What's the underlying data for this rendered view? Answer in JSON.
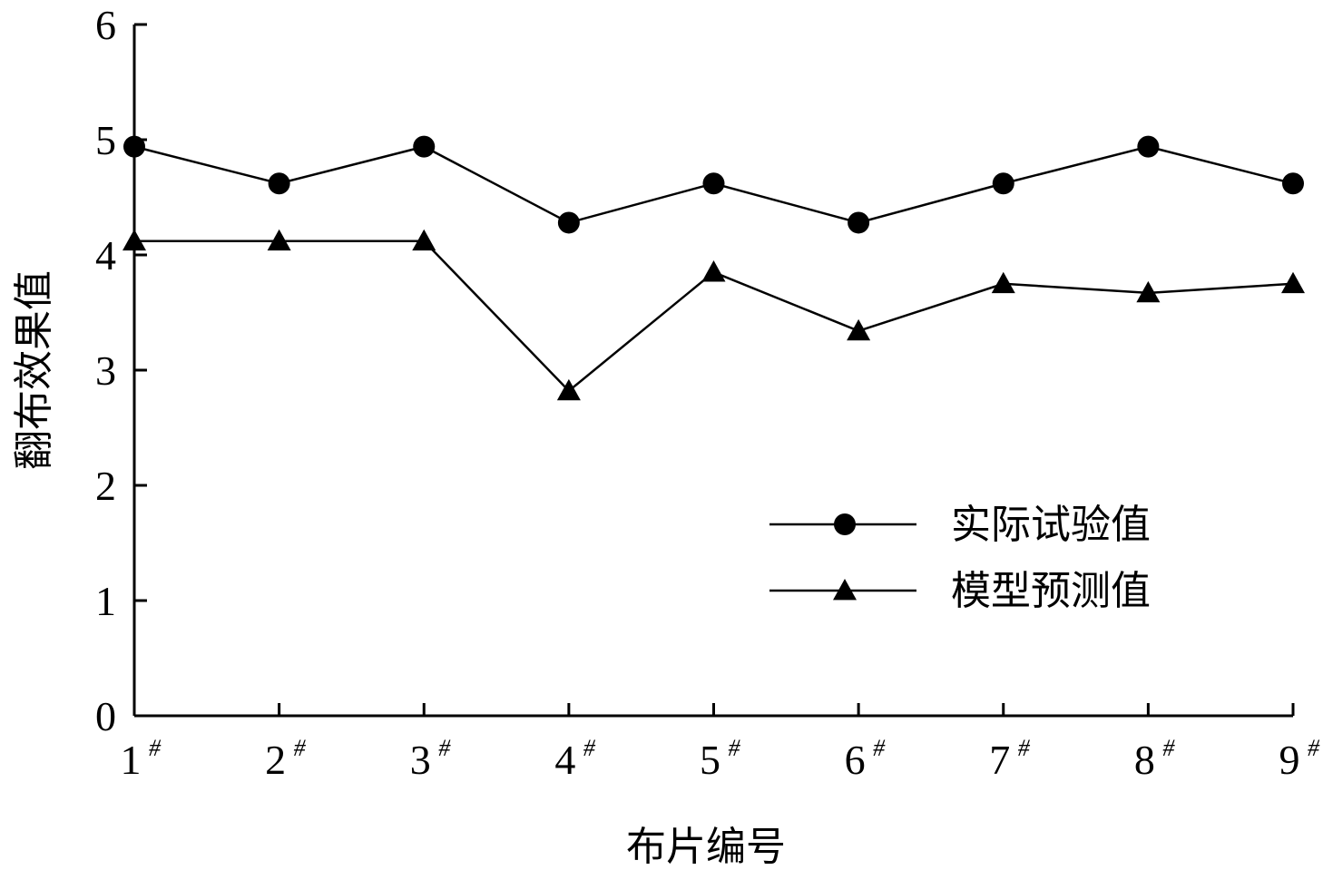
{
  "chart_data": {
    "type": "line",
    "categories": [
      "1#",
      "2#",
      "3#",
      "4#",
      "5#",
      "6#",
      "7#",
      "8#",
      "9#"
    ],
    "series": [
      {
        "name": "实际试验值",
        "marker": "circle",
        "values": [
          4.94,
          4.62,
          4.94,
          4.28,
          4.62,
          4.28,
          4.62,
          4.94,
          4.62
        ]
      },
      {
        "name": "模型预测值",
        "marker": "triangle",
        "values": [
          4.12,
          4.12,
          4.12,
          2.82,
          3.85,
          3.34,
          3.75,
          3.67,
          3.75
        ]
      }
    ],
    "xlabel": "布片编号",
    "ylabel": "翻布效果值",
    "ylim": [
      0,
      6
    ],
    "yticks": [
      "0",
      "1",
      "2",
      "3",
      "4",
      "5",
      "6"
    ],
    "grid": false,
    "legend_position": "center-right",
    "colors": {
      "line": "#000000",
      "marker": "#000000"
    }
  }
}
